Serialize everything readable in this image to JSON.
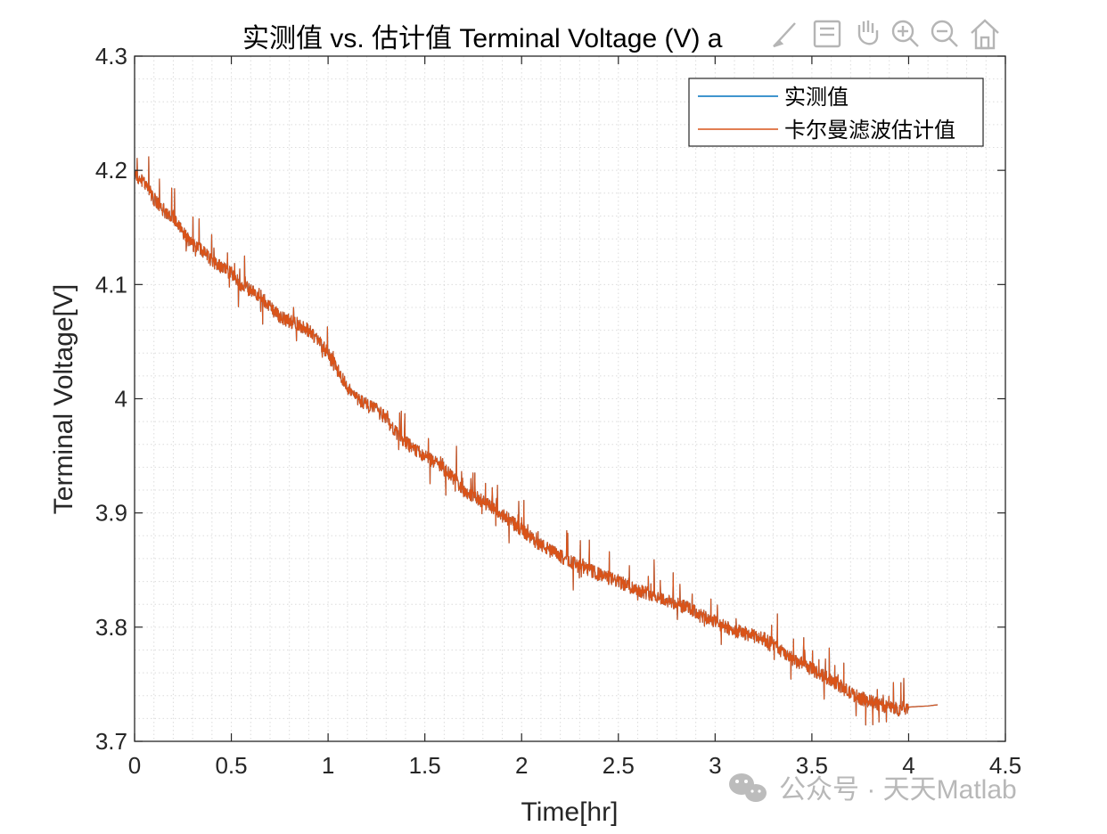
{
  "chart_data": {
    "type": "line",
    "title": "实测值 vs. 估计值 Terminal Voltage (V) a",
    "xlabel": "Time[hr]",
    "ylabel": "Terminal Voltage[V]",
    "xlim": [
      0,
      4.5
    ],
    "ylim": [
      3.7,
      4.3
    ],
    "x_ticks": [
      "0",
      "0.5",
      "1",
      "1.5",
      "2",
      "2.5",
      "3",
      "3.5",
      "4",
      "4.5"
    ],
    "y_ticks": [
      "3.7",
      "3.8",
      "3.9",
      "4",
      "4.1",
      "4.2",
      "4.3"
    ],
    "grid": "minor dotted",
    "legend_position": "top-right",
    "series": [
      {
        "name": "实测值",
        "color": "#0072BD",
        "x": [
          0.0,
          0.05,
          0.1,
          0.15,
          0.2,
          0.25,
          0.3,
          0.35,
          0.4,
          0.45,
          0.5,
          0.55,
          0.6,
          0.65,
          0.7,
          0.75,
          0.8,
          0.85,
          0.9,
          0.95,
          1.0,
          1.05,
          1.1,
          1.15,
          1.2,
          1.25,
          1.3,
          1.35,
          1.4,
          1.45,
          1.5,
          1.55,
          1.6,
          1.65,
          1.7,
          1.75,
          1.8,
          1.85,
          1.9,
          1.95,
          2.0,
          2.05,
          2.1,
          2.15,
          2.2,
          2.25,
          2.3,
          2.35,
          2.4,
          2.45,
          2.5,
          2.55,
          2.6,
          2.65,
          2.7,
          2.75,
          2.8,
          2.85,
          2.9,
          2.95,
          3.0,
          3.05,
          3.1,
          3.15,
          3.2,
          3.25,
          3.3,
          3.35,
          3.4,
          3.45,
          3.5,
          3.55,
          3.6,
          3.65,
          3.7,
          3.75,
          3.8,
          3.85,
          3.9,
          3.95,
          4.0,
          4.1,
          4.15
        ],
        "y": [
          4.195,
          4.19,
          4.175,
          4.165,
          4.16,
          4.145,
          4.135,
          4.13,
          4.12,
          4.115,
          4.11,
          4.1,
          4.095,
          4.09,
          4.08,
          4.072,
          4.068,
          4.065,
          4.06,
          4.05,
          4.04,
          4.025,
          4.01,
          4.0,
          3.995,
          3.99,
          3.983,
          3.97,
          3.962,
          3.955,
          3.95,
          3.945,
          3.938,
          3.93,
          3.92,
          3.915,
          3.91,
          3.905,
          3.898,
          3.892,
          3.885,
          3.878,
          3.872,
          3.867,
          3.862,
          3.858,
          3.853,
          3.85,
          3.846,
          3.843,
          3.84,
          3.836,
          3.833,
          3.83,
          3.827,
          3.823,
          3.82,
          3.817,
          3.813,
          3.808,
          3.805,
          3.8,
          3.797,
          3.795,
          3.792,
          3.79,
          3.785,
          3.778,
          3.77,
          3.768,
          3.763,
          3.758,
          3.754,
          3.748,
          3.742,
          3.738,
          3.735,
          3.732,
          3.73,
          3.728,
          3.73,
          3.731,
          3.732
        ]
      },
      {
        "name": "卡尔曼滤波估计值",
        "color": "#D95319",
        "x": [
          0.0,
          0.05,
          0.1,
          0.15,
          0.2,
          0.25,
          0.3,
          0.35,
          0.4,
          0.45,
          0.5,
          0.55,
          0.6,
          0.65,
          0.7,
          0.75,
          0.8,
          0.85,
          0.9,
          0.95,
          1.0,
          1.05,
          1.1,
          1.15,
          1.2,
          1.25,
          1.3,
          1.35,
          1.4,
          1.45,
          1.5,
          1.55,
          1.6,
          1.65,
          1.7,
          1.75,
          1.8,
          1.85,
          1.9,
          1.95,
          2.0,
          2.05,
          2.1,
          2.15,
          2.2,
          2.25,
          2.3,
          2.35,
          2.4,
          2.45,
          2.5,
          2.55,
          2.6,
          2.65,
          2.7,
          2.75,
          2.8,
          2.85,
          2.9,
          2.95,
          3.0,
          3.05,
          3.1,
          3.15,
          3.2,
          3.25,
          3.3,
          3.35,
          3.4,
          3.45,
          3.5,
          3.55,
          3.6,
          3.65,
          3.7,
          3.75,
          3.8,
          3.85,
          3.9,
          3.95,
          4.0,
          4.1,
          4.15
        ],
        "y": [
          4.195,
          4.19,
          4.175,
          4.165,
          4.16,
          4.145,
          4.135,
          4.13,
          4.12,
          4.115,
          4.11,
          4.1,
          4.095,
          4.09,
          4.08,
          4.072,
          4.068,
          4.065,
          4.06,
          4.05,
          4.04,
          4.025,
          4.01,
          4.0,
          3.995,
          3.99,
          3.983,
          3.97,
          3.962,
          3.955,
          3.95,
          3.945,
          3.938,
          3.93,
          3.92,
          3.915,
          3.91,
          3.905,
          3.898,
          3.892,
          3.885,
          3.878,
          3.872,
          3.867,
          3.862,
          3.858,
          3.853,
          3.85,
          3.846,
          3.843,
          3.84,
          3.836,
          3.833,
          3.83,
          3.827,
          3.823,
          3.82,
          3.817,
          3.813,
          3.808,
          3.805,
          3.8,
          3.797,
          3.795,
          3.792,
          3.79,
          3.785,
          3.778,
          3.77,
          3.768,
          3.763,
          3.758,
          3.754,
          3.748,
          3.742,
          3.738,
          3.735,
          3.732,
          3.73,
          3.728,
          3.73,
          3.731,
          3.732
        ]
      }
    ]
  },
  "toolbar": {
    "icons": [
      "brush-icon",
      "save-icon",
      "pan-hand-icon",
      "zoom-in-icon",
      "zoom-out-icon",
      "home-icon"
    ],
    "icon_color": "#b5b5b5"
  },
  "watermark": {
    "text": "公众号 · 天天Matlab",
    "icon": "wechat-icon",
    "color": "#b8b8b8"
  },
  "colors": {
    "axes": "#262626",
    "grid": "#dcdcdc",
    "background": "#ffffff"
  }
}
